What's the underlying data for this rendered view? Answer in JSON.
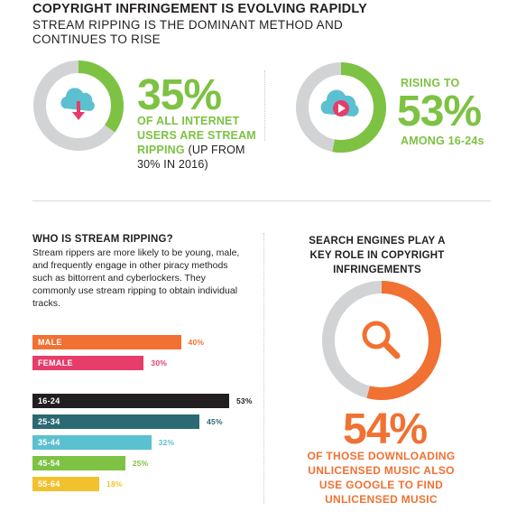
{
  "header": {
    "title": "COPYRIGHT INFRINGEMENT IS EVOLVING RAPIDLY",
    "subtitle": "STREAM RIPPING IS THE DOMINANT METHOD AND CONTINUES TO RISE"
  },
  "stat_left": {
    "value": "35%",
    "fraction": 0.35,
    "caption_bold": "OF ALL INTERNET USERS ARE STREAM RIPPING",
    "caption_plain": " (UP FROM 30% IN 2016)",
    "icon": "cloud-download-icon"
  },
  "stat_right": {
    "pre": "RISING TO",
    "value": "53%",
    "fraction": 0.53,
    "post": "AMONG 16-24s",
    "icon": "cloud-play-icon"
  },
  "who": {
    "title": "WHO IS STREAM RIPPING?",
    "body": "Stream rippers are more likely to be young, male, and frequently engage in other piracy methods such as bittorrent and cyberlockers. They commonly use stream ripping to obtain individual tracks."
  },
  "chart_data": [
    {
      "type": "bar",
      "categories": [
        "MALE",
        "FEMALE"
      ],
      "values": [
        40,
        30
      ],
      "value_labels": [
        "40%",
        "30%"
      ],
      "colors": [
        "#f07132",
        "#e63d6b"
      ],
      "xlim": [
        0,
        53
      ]
    },
    {
      "type": "bar",
      "categories": [
        "16-24",
        "25-34",
        "35-44",
        "45-54",
        "55-64"
      ],
      "values": [
        53,
        45,
        32,
        25,
        18
      ],
      "value_labels": [
        "53%",
        "45%",
        "32%",
        "25%",
        "18%"
      ],
      "colors": [
        "#231f20",
        "#2b6a73",
        "#5bc0d0",
        "#7dc242",
        "#f2c12e"
      ],
      "xlim": [
        0,
        53
      ]
    }
  ],
  "search": {
    "title": "SEARCH ENGINES PLAY A KEY ROLE IN COPYRIGHT INFRINGEMENTS",
    "value": "54%",
    "fraction": 0.54,
    "caption": "OF THOSE DOWNLOADING UNLICENSED MUSIC ALSO USE GOOGLE TO FIND UNLICENSED MUSIC",
    "icon": "magnifier-icon"
  },
  "colors": {
    "green": "#7dc242",
    "orange": "#f07132",
    "ring_gray": "#d1d3d4",
    "icon_blue": "#5bc0d0",
    "icon_pink": "#e63d6b"
  }
}
